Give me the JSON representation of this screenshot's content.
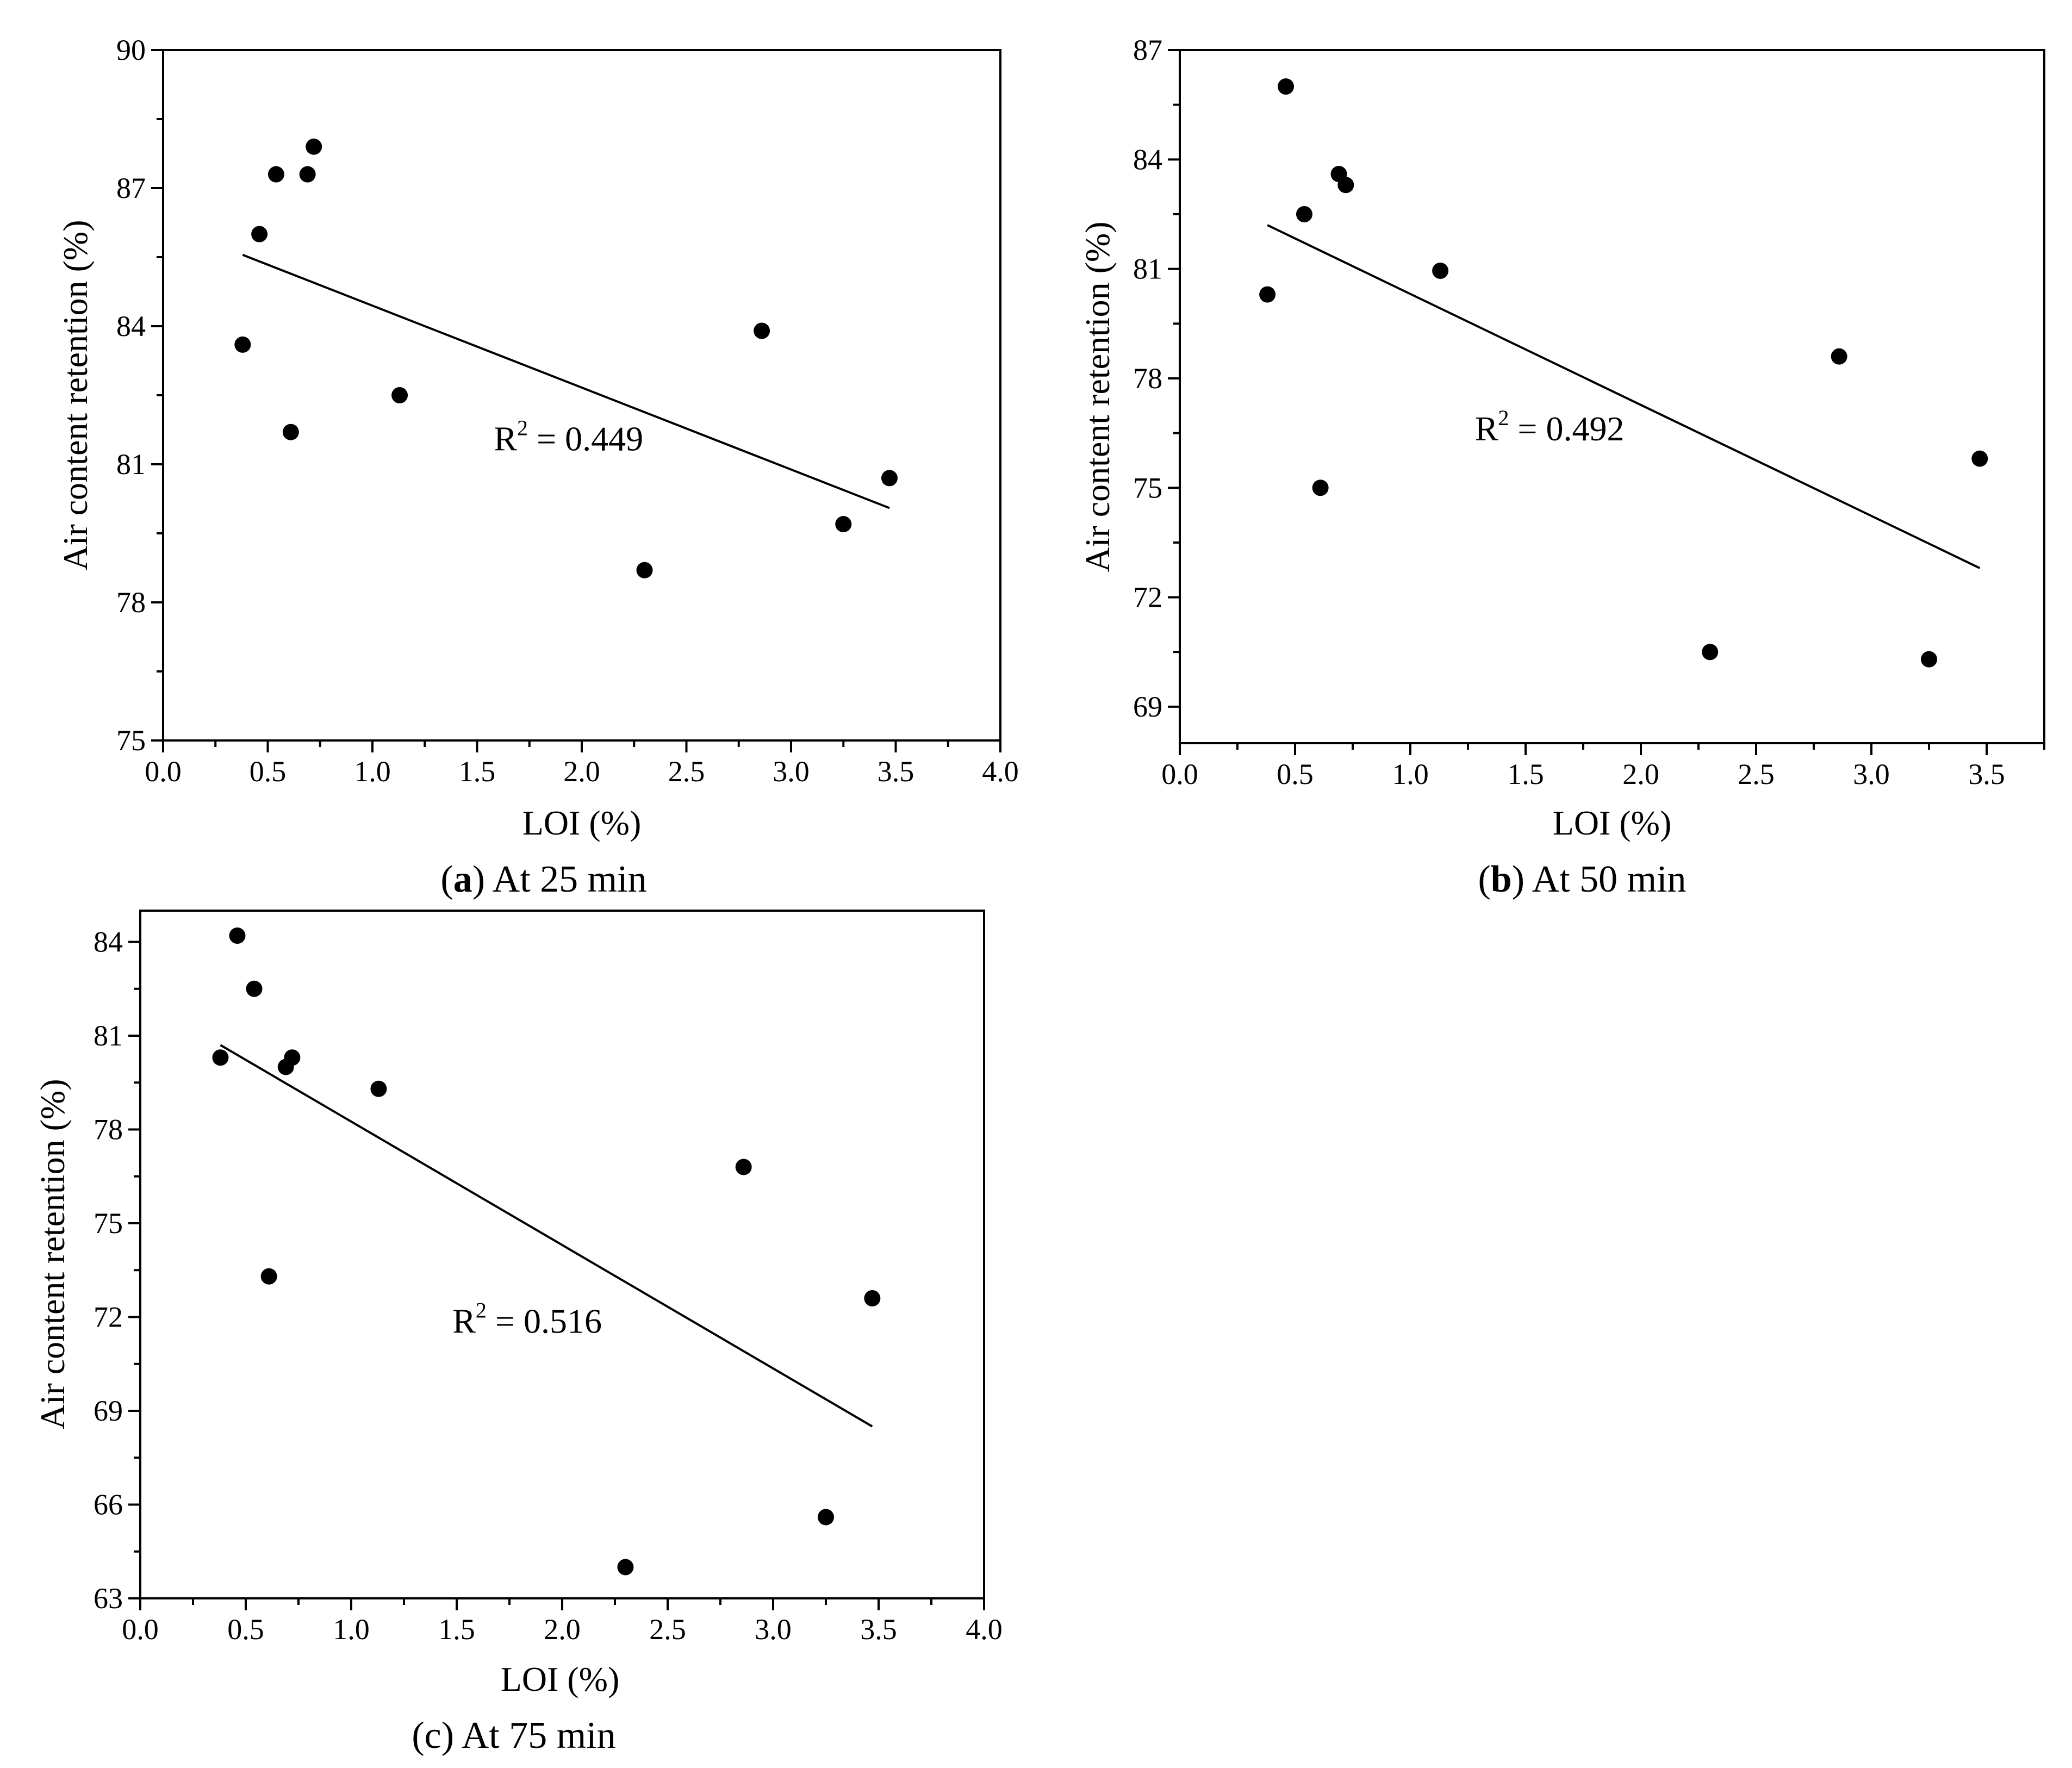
{
  "colors": {
    "axes": "#000000",
    "points": "#000000",
    "background": "#ffffff"
  },
  "chart_data": [
    {
      "id": "a",
      "type": "scatter",
      "caption_open": "(",
      "caption_label": "a",
      "caption_rest": ") At 25 min",
      "xlabel": "LOI (%)",
      "ylabel": "Air content retention (%)",
      "xlim": [
        0,
        4.0
      ],
      "ylim": [
        75,
        90
      ],
      "xticks": [
        0.0,
        0.5,
        1.0,
        1.5,
        2.0,
        2.5,
        3.0,
        3.5,
        4.0
      ],
      "xtick_labels": [
        "0.0",
        "0.5",
        "1.0",
        "1.5",
        "2.0",
        "2.5",
        "3.0",
        "3.5",
        "4.0"
      ],
      "yticks": [
        75,
        78,
        81,
        84,
        87,
        90
      ],
      "ytick_labels": [
        "75",
        "78",
        "81",
        "84",
        "87",
        "90"
      ],
      "x": [
        0.38,
        0.46,
        0.54,
        0.61,
        0.69,
        0.72,
        1.13,
        2.3,
        2.86,
        3.25,
        3.47
      ],
      "y": [
        83.6,
        86.0,
        87.3,
        81.7,
        87.3,
        87.9,
        82.5,
        78.7,
        83.9,
        79.7,
        80.7
      ],
      "fit": {
        "x": [
          0.38,
          3.47
        ],
        "y": [
          85.55,
          80.05
        ]
      },
      "r2_prefix": "R",
      "r2_power": "2",
      "r2_text": " = 0.449",
      "r2_pos": [
        1.58,
        81.3
      ]
    },
    {
      "id": "b",
      "type": "scatter",
      "caption_open": "(",
      "caption_label": "b",
      "caption_rest": ") At 50 min",
      "xlabel": "LOI (%)",
      "ylabel": "Air content retention (%)",
      "xlim": [
        0,
        3.75
      ],
      "ylim": [
        68,
        87
      ],
      "xticks": [
        0.0,
        0.5,
        1.0,
        1.5,
        2.0,
        2.5,
        3.0,
        3.5
      ],
      "xtick_labels": [
        "0.0",
        "0.5",
        "1.0",
        "1.5",
        "2.0",
        "2.5",
        "3.0",
        "3.5"
      ],
      "yticks": [
        69,
        72,
        75,
        78,
        81,
        84,
        87
      ],
      "ytick_labels": [
        "69",
        "72",
        "75",
        "78",
        "81",
        "84",
        "87"
      ],
      "x": [
        0.38,
        0.46,
        0.54,
        0.61,
        0.69,
        0.72,
        1.13,
        2.3,
        2.86,
        3.25,
        3.47
      ],
      "y": [
        80.3,
        86.0,
        82.5,
        75.0,
        83.6,
        83.3,
        80.95,
        70.5,
        78.6,
        70.3,
        75.8
      ],
      "fit": {
        "x": [
          0.38,
          3.47
        ],
        "y": [
          82.2,
          72.8
        ]
      },
      "r2_prefix": "R",
      "r2_power": "2",
      "r2_text": " = 0.492",
      "r2_pos": [
        1.28,
        76.3
      ]
    },
    {
      "id": "c",
      "type": "scatter",
      "caption_open": "",
      "caption_label": "",
      "caption_rest": "(c) At 75 min",
      "xlabel": "LOI (%)",
      "ylabel": "Air content retention (%)",
      "xlim": [
        0,
        4.0
      ],
      "ylim": [
        63,
        85
      ],
      "xticks": [
        0.0,
        0.5,
        1.0,
        1.5,
        2.0,
        2.5,
        3.0,
        3.5,
        4.0
      ],
      "xtick_labels": [
        "0.0",
        "0.5",
        "1.0",
        "1.5",
        "2.0",
        "2.5",
        "3.0",
        "3.5",
        "4.0"
      ],
      "yticks": [
        63,
        66,
        69,
        72,
        75,
        78,
        81,
        84
      ],
      "ytick_labels": [
        "63",
        "66",
        "69",
        "72",
        "75",
        "78",
        "81",
        "84"
      ],
      "x": [
        0.38,
        0.46,
        0.54,
        0.61,
        0.69,
        0.72,
        1.13,
        2.3,
        2.86,
        3.25,
        3.47
      ],
      "y": [
        80.3,
        84.2,
        82.5,
        73.3,
        80.0,
        80.3,
        79.3,
        64.0,
        76.8,
        65.6,
        72.6
      ],
      "fit": {
        "x": [
          0.38,
          3.47
        ],
        "y": [
          80.7,
          68.5
        ]
      },
      "r2_prefix": "R",
      "r2_power": "2",
      "r2_text": " = 0.516",
      "r2_pos": [
        1.48,
        71.5
      ]
    }
  ]
}
